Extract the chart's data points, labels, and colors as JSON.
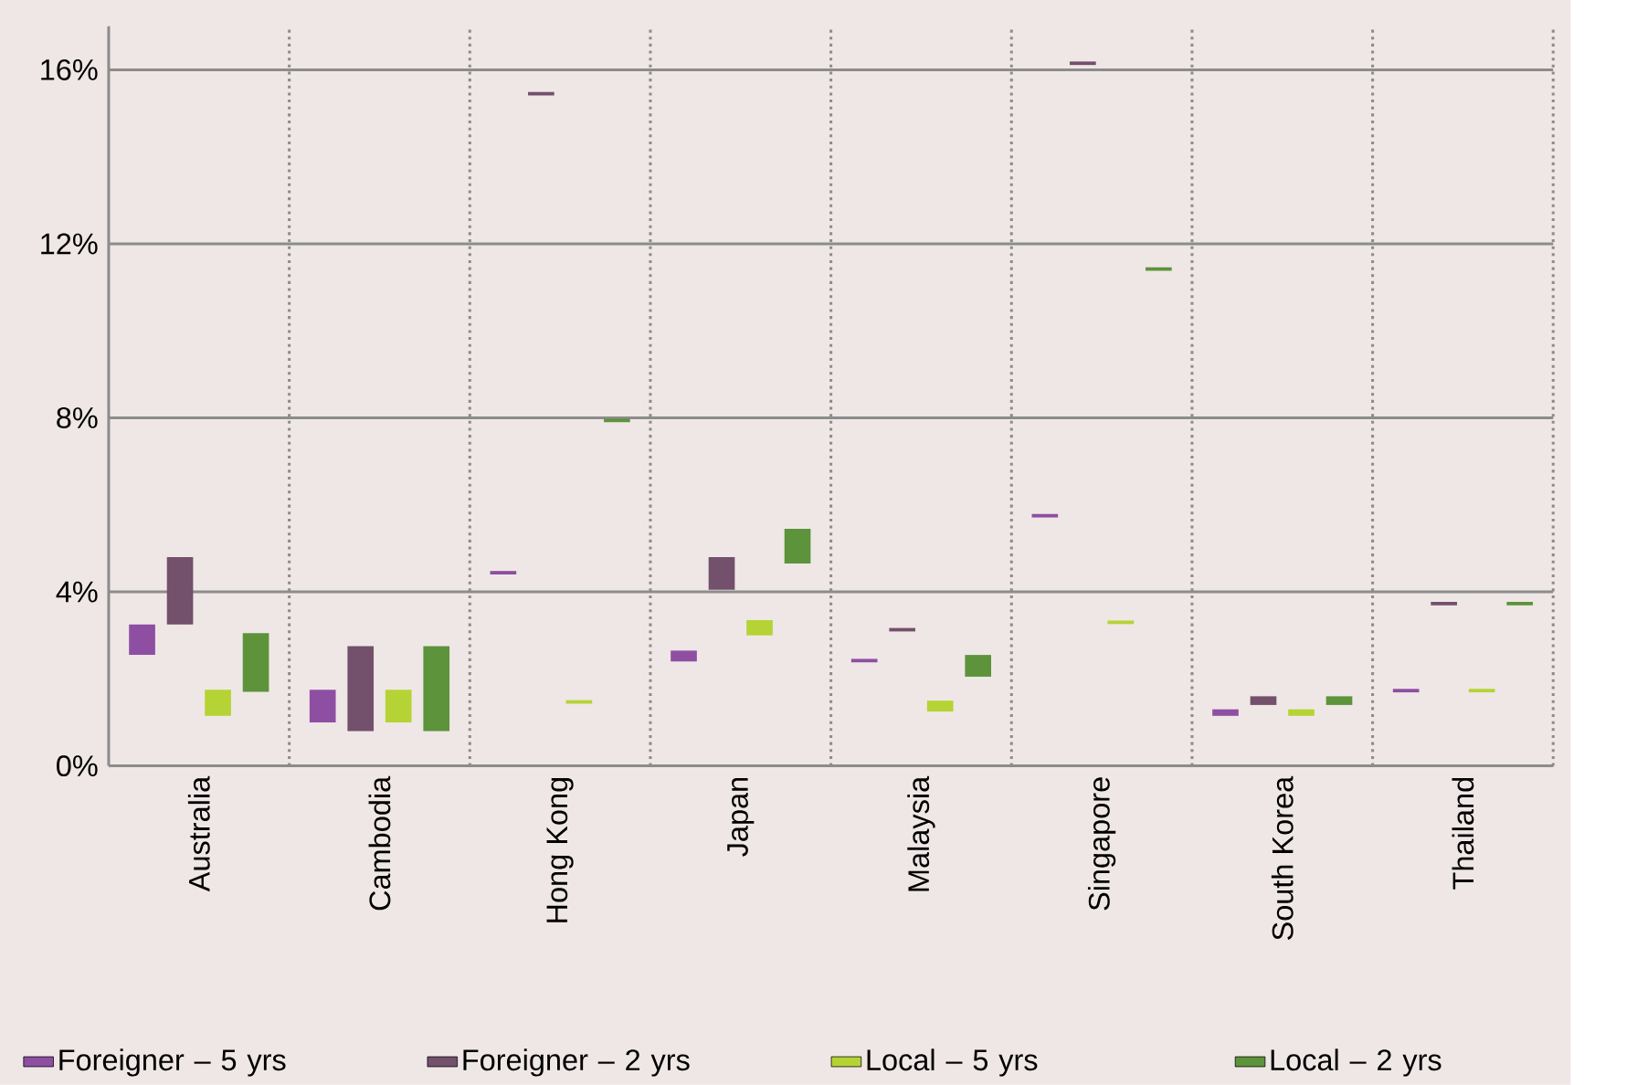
{
  "chart_data": {
    "type": "bar",
    "categories": [
      "Australia",
      "Cambodia",
      "Hong Kong",
      "Japan",
      "Malaysia",
      "Singapore",
      "South Korea",
      "Thailand"
    ],
    "series": [
      {
        "name": "Foreigner – 5 yrs",
        "color": "#8e4fa3",
        "base": [
          2.55,
          1.0,
          4.4,
          2.4,
          2.38,
          5.71,
          1.15,
          1.69
        ],
        "values": [
          0.7,
          0.75,
          0.08,
          0.25,
          0.08,
          0.08,
          0.15,
          0.08
        ]
      },
      {
        "name": "Foreigner – 2 yrs",
        "color": "#73506b",
        "base": [
          3.25,
          0.8,
          15.41,
          4.05,
          3.09,
          16.11,
          1.4,
          3.69
        ],
        "values": [
          1.55,
          1.95,
          0.08,
          0.75,
          0.08,
          0.08,
          0.2,
          0.08
        ]
      },
      {
        "name": "Local – 5 yrs",
        "color": "#b5d334",
        "base": [
          1.15,
          1.0,
          1.43,
          3.0,
          1.25,
          3.26,
          1.15,
          1.69
        ],
        "values": [
          0.6,
          0.75,
          0.08,
          0.35,
          0.25,
          0.08,
          0.15,
          0.08
        ]
      },
      {
        "name": "Local – 2 yrs",
        "color": "#5d933b",
        "base": [
          1.7,
          0.8,
          7.9,
          4.65,
          2.05,
          11.38,
          1.4,
          3.69
        ],
        "values": [
          1.35,
          1.95,
          0.08,
          0.8,
          0.5,
          0.08,
          0.2,
          0.08
        ]
      }
    ],
    "ylim": [
      0,
      17
    ],
    "yticks": [
      {
        "value": 0,
        "label": "0%"
      },
      {
        "value": 4,
        "label": "4%"
      },
      {
        "value": 8,
        "label": "8%"
      },
      {
        "value": 12,
        "label": "12%"
      },
      {
        "value": 16,
        "label": "16%"
      }
    ],
    "grid": true,
    "legend": "bottom"
  }
}
